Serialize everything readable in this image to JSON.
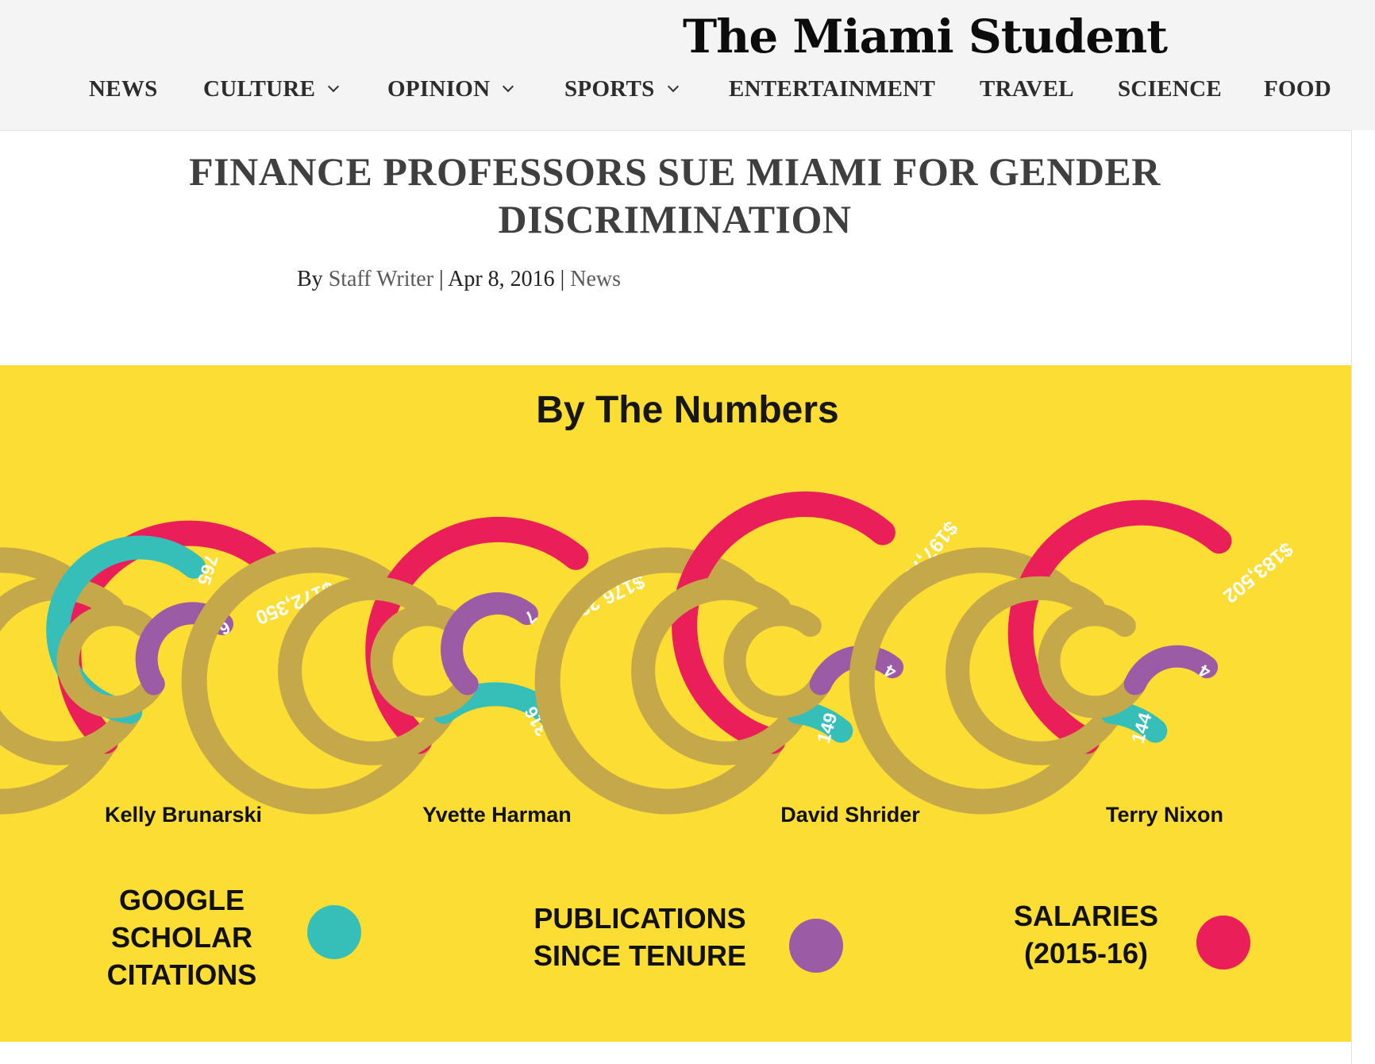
{
  "site": {
    "logo": "The Miami Student"
  },
  "nav": {
    "items": [
      {
        "label": "NEWS",
        "dropdown": false
      },
      {
        "label": "CULTURE",
        "dropdown": true
      },
      {
        "label": "OPINION",
        "dropdown": true
      },
      {
        "label": "SPORTS",
        "dropdown": true
      },
      {
        "label": "ENTERTAINMENT",
        "dropdown": false
      },
      {
        "label": "TRAVEL",
        "dropdown": false
      },
      {
        "label": "SCIENCE",
        "dropdown": false
      },
      {
        "label": "FOOD",
        "dropdown": false
      }
    ]
  },
  "article": {
    "title": "FINANCE PROFESSORS SUE MIAMI FOR GENDER DISCRIMINATION",
    "by_prefix": "By",
    "author": "Staff Writer",
    "separator": "|",
    "date": "Apr 8, 2016",
    "category": "News"
  },
  "colors": {
    "background": "#fbdd33",
    "track": "#c5a84a",
    "citations": "#36bfb9",
    "publications": "#9b5ba5",
    "salaries": "#ea1e59"
  },
  "chart_data": {
    "type": "radial-bar",
    "title": "By The Numbers",
    "metrics": [
      {
        "key": "citations",
        "label": "GOOGLE SCHOLAR CITATIONS",
        "color": "#36bfb9"
      },
      {
        "key": "publications",
        "label": "PUBLICATIONS SINCE TENURE",
        "color": "#9b5ba5"
      },
      {
        "key": "salaries",
        "label": "SALARIES (2015-16)",
        "color": "#ea1e59"
      }
    ],
    "professors": [
      {
        "name": "Kelly Brunarski",
        "salary": 172350,
        "salary_label": "$172,350",
        "citations": 765,
        "citations_label": "765",
        "publications": 6,
        "publications_label": "6"
      },
      {
        "name": "Yvette Harman",
        "salary": 176238,
        "salary_label": "$176,238",
        "citations": 316,
        "citations_label": "316",
        "publications": 7,
        "publications_label": "7"
      },
      {
        "name": "David Shrider",
        "salary": 197700,
        "salary_label": "$197,700",
        "citations": 149,
        "citations_label": "149",
        "publications": 4,
        "publications_label": "4"
      },
      {
        "name": "Terry Nixon",
        "salary": 183502,
        "salary_label": "$183,502",
        "citations": 144,
        "citations_label": "144",
        "publications": 4,
        "publications_label": "4"
      }
    ],
    "fills": {
      "salary": [
        0.63,
        0.64,
        0.73,
        0.69
      ],
      "citations": [
        0.76,
        0.28,
        0.12,
        0.12
      ],
      "publications": [
        0.58,
        0.64,
        0.38,
        0.38
      ]
    }
  }
}
